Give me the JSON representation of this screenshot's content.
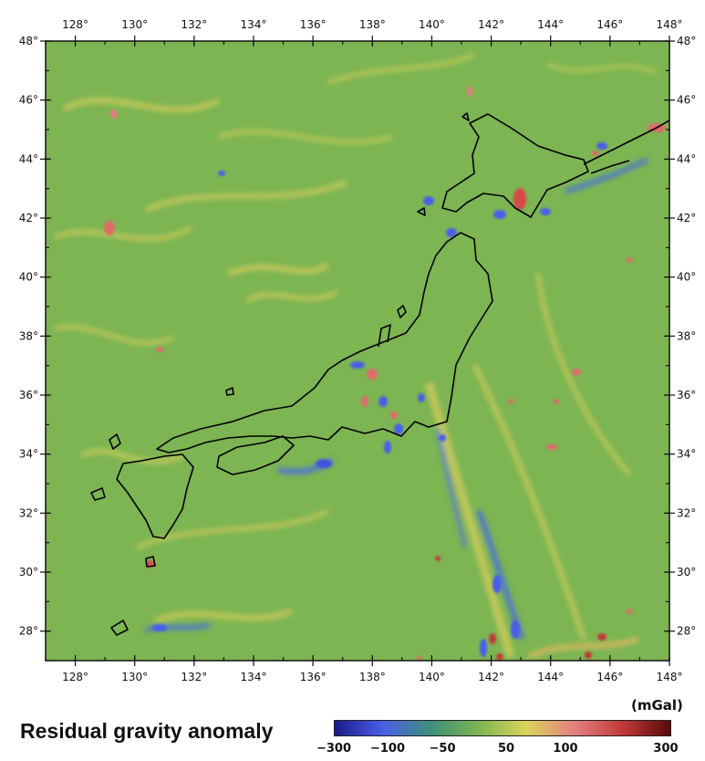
{
  "map": {
    "lon_labels": [
      "128°",
      "130°",
      "132°",
      "134°",
      "136°",
      "138°",
      "140°",
      "142°",
      "144°",
      "146°",
      "148°"
    ],
    "lat_labels": [
      "48°",
      "46°",
      "44°",
      "42°",
      "40°",
      "38°",
      "36°",
      "34°",
      "32°",
      "30°",
      "28°"
    ],
    "lon_range": [
      127,
      148
    ],
    "lat_range": [
      27,
      48
    ],
    "background_color": "#7cb552",
    "coastline_color": "#000000"
  },
  "legend": {
    "title": "Residual gravity anomaly",
    "unit": "(mGal)",
    "ticks": [
      "−300",
      "−100",
      "−50",
      "50",
      "100",
      "300"
    ],
    "colors": [
      "#1a1a8a",
      "#4a5ee8",
      "#3f8f7a",
      "#7cb552",
      "#d9d45a",
      "#e48080",
      "#c23a3a",
      "#5a0a0a"
    ]
  }
}
